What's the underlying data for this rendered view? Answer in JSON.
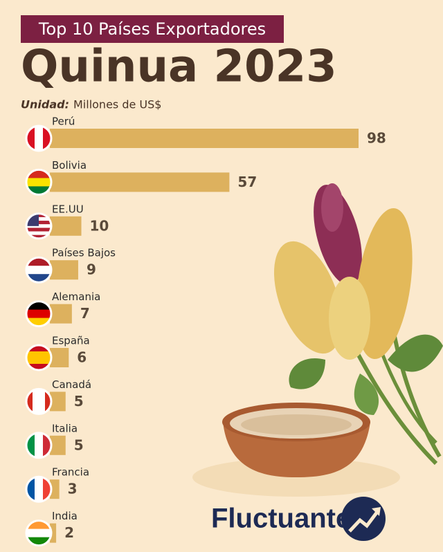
{
  "chart_data": {
    "type": "bar",
    "subtitle": "Top 10 Países Exportadores",
    "title": "Quinua 2023",
    "unit_label": "Unidad:",
    "unit": "Millones de US$",
    "categories": [
      "Perú",
      "Bolivia",
      "EE.UU",
      "Países Bajos",
      "Alemania",
      "España",
      "Canadá",
      "Italia",
      "Francia",
      "India"
    ],
    "values": [
      98,
      57,
      10,
      9,
      7,
      6,
      5,
      5,
      3,
      2
    ],
    "color": "#ddb15e",
    "brand": "Fluctuante"
  }
}
